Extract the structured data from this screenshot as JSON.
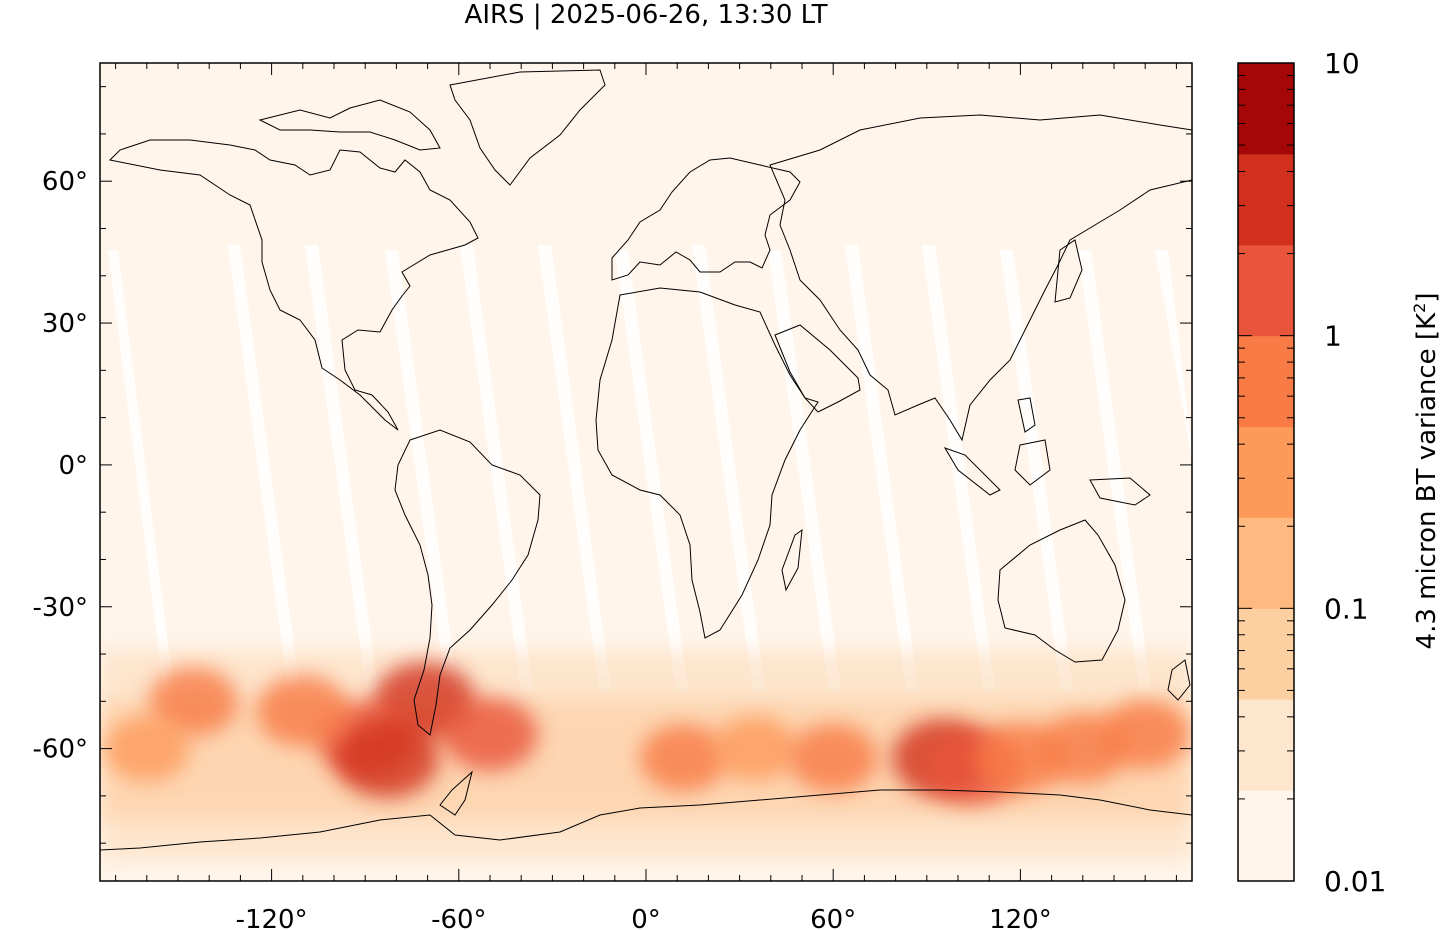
{
  "title": "AIRS | 2025-06-26, 13:30 LT",
  "map": {
    "projection": "plate-carree",
    "lon_range": [
      -175,
      175
    ],
    "lat_range": [
      -88,
      85
    ],
    "lon_ticks": [
      {
        "value": -120,
        "label": "-120°"
      },
      {
        "value": -60,
        "label": "-60°"
      },
      {
        "value": 0,
        "label": "0°"
      },
      {
        "value": 60,
        "label": "60°"
      },
      {
        "value": 120,
        "label": "120°"
      }
    ],
    "lat_ticks": [
      {
        "value": 60,
        "label": "60°"
      },
      {
        "value": 30,
        "label": "30°"
      },
      {
        "value": 0,
        "label": "0°"
      },
      {
        "value": -30,
        "label": "-30°"
      },
      {
        "value": -60,
        "label": "-60°"
      }
    ],
    "background_color": "#fff5eb",
    "coastline_color": "#000000",
    "swath_gap_color": "#ffffff"
  },
  "colorbar": {
    "label_main": "4.3 micron BT variance [K",
    "label_sup": "2",
    "label_end": "]",
    "scale": "log",
    "range": [
      0.01,
      10
    ],
    "tick_labels": [
      {
        "value": 10,
        "label": "10"
      },
      {
        "value": 1,
        "label": "1"
      },
      {
        "value": 0.1,
        "label": "0.1"
      },
      {
        "value": 0.01,
        "label": "0.01"
      }
    ],
    "bin_colors": [
      "#fff5eb",
      "#fee6ce",
      "#fdd0a2",
      "#fdb97f",
      "#fd9a5a",
      "#f87a45",
      "#e9553a",
      "#d2301f",
      "#a50606"
    ]
  },
  "gravity_wave_hotspots": [
    {
      "lon": -71,
      "lat": -50,
      "value": 2.5
    },
    {
      "lon": -90,
      "lat": -58,
      "value": 1.5
    },
    {
      "lon": -83,
      "lat": -62,
      "value": 3.0
    },
    {
      "lon": -50,
      "lat": -57,
      "value": 1.2
    },
    {
      "lon": -110,
      "lat": -52,
      "value": 0.9
    },
    {
      "lon": -145,
      "lat": -50,
      "value": 0.6
    },
    {
      "lon": -160,
      "lat": -60,
      "value": 0.4
    },
    {
      "lon": 12,
      "lat": -62,
      "value": 0.5
    },
    {
      "lon": 35,
      "lat": -60,
      "value": 0.35
    },
    {
      "lon": 60,
      "lat": -62,
      "value": 0.6
    },
    {
      "lon": 95,
      "lat": -62,
      "value": 2.2
    },
    {
      "lon": 105,
      "lat": -64,
      "value": 1.6
    },
    {
      "lon": 120,
      "lat": -62,
      "value": 0.8
    },
    {
      "lon": 140,
      "lat": -60,
      "value": 0.7
    },
    {
      "lon": 160,
      "lat": -57,
      "value": 0.6
    }
  ]
}
